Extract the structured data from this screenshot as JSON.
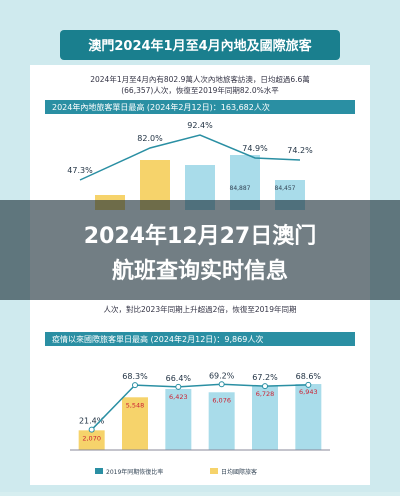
{
  "header": {
    "title": "澳門2024年1月至4月內地及國際旅客"
  },
  "mainland": {
    "summary_1": "2024年1月至4月內有802.9萬人次內地旅客訪澳，日均超過6.6萬",
    "summary_2": "(66,357)人次，恢復至2019年同期82.0%水平",
    "peak": "2024年內地旅客單日最高 (2024年2月12日)：163,682人次",
    "rates": [
      "47.3%",
      "82.0%",
      "92.4%",
      "74.9%",
      "74.2%"
    ],
    "bar_labels": [
      "84,887",
      "84,457"
    ]
  },
  "overlay": {
    "line_1": "2024年12月27日澳门",
    "line_2": "航班查询实时信息"
  },
  "international": {
    "summary": "人次，對比2023年同期上升超過2倍，恢復至2019年同期",
    "peak": "疫情以來國際旅客單日最高 (2024年2月12日)：9,869人次",
    "rates": [
      21.4,
      68.3,
      66.4,
      69.2,
      67.2,
      68.6
    ],
    "rate_labels": [
      "21.4%",
      "68.3%",
      "66.4%",
      "69.2%",
      "67.2%",
      "68.6%"
    ],
    "values": [
      2070,
      5548,
      6423,
      6076,
      6728,
      6943
    ],
    "value_labels": [
      "2,070",
      "5,548",
      "6,423",
      "6,076",
      "6,728",
      "6,943"
    ],
    "legend": [
      "2019年同期恢復比率",
      "日均國際旅客"
    ]
  }
}
